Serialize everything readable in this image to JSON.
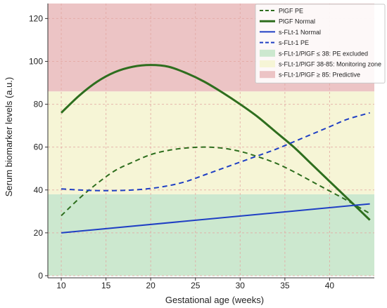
{
  "chart_data": {
    "type": "line",
    "title": "",
    "xlabel": "Gestational age (weeks)",
    "ylabel": "Serum biomarker levels (a.u.)",
    "xlim": [
      8.5,
      45
    ],
    "ylim": [
      -1,
      127
    ],
    "x_ticks": [
      10,
      15,
      20,
      25,
      30,
      35,
      40
    ],
    "y_ticks": [
      0,
      20,
      40,
      60,
      80,
      100,
      120
    ],
    "grid": true,
    "legend_position": "top-right",
    "zones": [
      {
        "name": "s-FLt-1/PlGF ≤ 38: PE excluded",
        "y0": 0,
        "y1": 38,
        "color": "#cce8cf"
      },
      {
        "name": "s-FLt-1/PlGF 38-85: Monitoring zone",
        "y0": 38,
        "y1": 86,
        "color": "#f6f5d6"
      },
      {
        "name": "s-FLt-1/PlGF ≥ 85: Predictive",
        "y0": 86,
        "y1": 127,
        "color": "#ecc4c5"
      }
    ],
    "series": [
      {
        "name": "PlGF PE",
        "color": "#2e6e1e",
        "dash": "dashed",
        "width": 2,
        "x": [
          10,
          12,
          14,
          16,
          18,
          20,
          22,
          24,
          26,
          28,
          30,
          32,
          34,
          36,
          38,
          40,
          42,
          44.5
        ],
        "values": [
          28,
          36,
          43,
          49,
          53,
          56.5,
          58.5,
          59.6,
          60,
          59.5,
          58,
          55.5,
          52.5,
          48.5,
          44,
          39.5,
          35,
          29
        ]
      },
      {
        "name": "PlGF Normal",
        "color": "#2e6e1e",
        "dash": "solid",
        "width": 3,
        "x": [
          10,
          12,
          14,
          16,
          18,
          20,
          22,
          24,
          26,
          28,
          30,
          32,
          34,
          36,
          38,
          40,
          42,
          44.5
        ],
        "values": [
          76,
          84,
          90.5,
          95,
          97.5,
          98.3,
          97.5,
          94.5,
          90.5,
          85.5,
          80,
          74,
          67,
          60,
          52,
          44,
          36,
          26
        ]
      },
      {
        "name": "s-FLt-1 Normal",
        "color": "#1f3fc4",
        "dash": "solid",
        "width": 2,
        "x": [
          10,
          44.5
        ],
        "values": [
          20,
          33.5
        ]
      },
      {
        "name": "s-FLt-1 PE",
        "color": "#1f3fc4",
        "dash": "dashed",
        "width": 2,
        "x": [
          10,
          12,
          14,
          16,
          18,
          20,
          22,
          24,
          26,
          28,
          30,
          32,
          34,
          36,
          38,
          40,
          42,
          44.5
        ],
        "values": [
          40.5,
          40,
          39.7,
          39.7,
          40,
          40.7,
          42,
          44,
          47,
          50,
          53,
          56,
          59,
          62.5,
          66,
          69.5,
          73,
          76
        ]
      }
    ]
  },
  "legend": [
    {
      "label": "PlGF PE",
      "kind": "line",
      "color": "#2e6e1e",
      "dash": "dashed"
    },
    {
      "label": "PlGF Normal",
      "kind": "line",
      "color": "#2e6e1e",
      "dash": "solid",
      "bold": true
    },
    {
      "label": "s-FLt-1 Normal",
      "kind": "line",
      "color": "#1f3fc4",
      "dash": "solid"
    },
    {
      "label": "s-FLt-1 PE",
      "kind": "line",
      "color": "#1f3fc4",
      "dash": "dashed"
    },
    {
      "label": "s-FLt-1/PlGF ≤ 38: PE excluded",
      "kind": "patch",
      "color": "#cce8cf"
    },
    {
      "label": "s-FLt-1/PlGF 38-85: Monitoring zone",
      "kind": "patch",
      "color": "#f6f5d6"
    },
    {
      "label": "s-FLt-1/PlGF ≥ 85: Predictive",
      "kind": "patch",
      "color": "#ecc4c5"
    }
  ]
}
